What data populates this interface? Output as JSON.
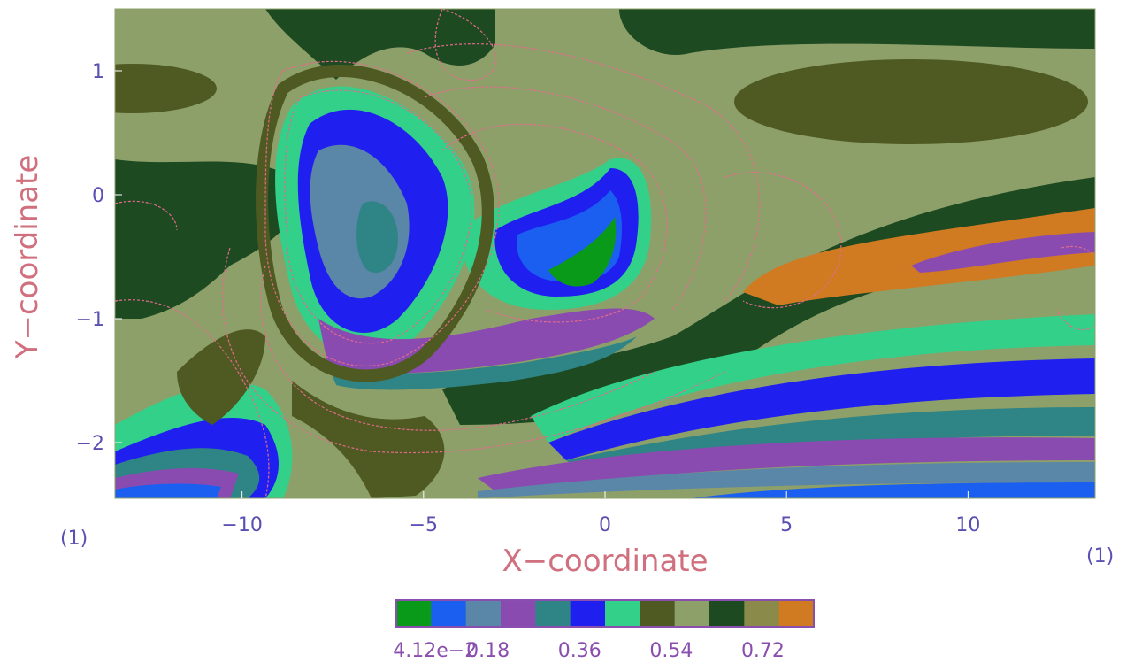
{
  "chart_data": {
    "type": "heatmap",
    "title": "",
    "xlabel": "X−coordinate",
    "ylabel": "Y−coordinate",
    "xlim": [
      -13.5,
      13.5
    ],
    "ylim": [
      -2.45,
      1.5
    ],
    "x_ticks": [
      -10,
      -5,
      0,
      5,
      10
    ],
    "x_tick_labels": [
      "−10",
      "−5",
      "0",
      "5",
      "10"
    ],
    "y_ticks": [
      1,
      0,
      -1,
      -2
    ],
    "y_tick_labels": [
      "1",
      "0",
      "−1",
      "−2"
    ],
    "corner_left": "(1)",
    "corner_right": "(1)",
    "colorbar": {
      "colors": [
        "#0a9a1a",
        "#1a5ff0",
        "#5a86a8",
        "#8a4bb0",
        "#2f8585",
        "#1f1ff0",
        "#33d08a",
        "#4e5a22",
        "#8ea06a",
        "#1e4a22",
        "#8a8a4a",
        "#d07a22"
      ],
      "tick_values": [
        0.0412,
        0.18,
        0.36,
        0.54,
        0.72
      ],
      "tick_labels": [
        "4.12e−2",
        "0.18",
        "0.36",
        "0.54",
        "0.72"
      ],
      "range": [
        0.0,
        0.82
      ]
    }
  }
}
